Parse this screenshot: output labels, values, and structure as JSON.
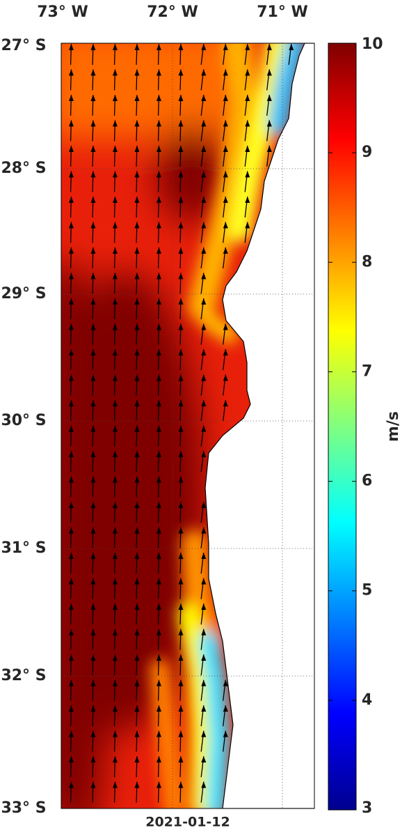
{
  "map": {
    "lon_labels": [
      "73° W",
      "72° W",
      "71° W"
    ],
    "lat_labels": [
      "27° S",
      "28° S",
      "29° S",
      "30° S",
      "31° S",
      "32° S",
      "33° S"
    ],
    "date": "2021-01-12"
  },
  "colorbar": {
    "label": "m/s",
    "lim": [
      3,
      10
    ],
    "ticks": [
      3,
      4,
      5,
      6,
      7,
      8,
      9,
      10
    ]
  }
}
